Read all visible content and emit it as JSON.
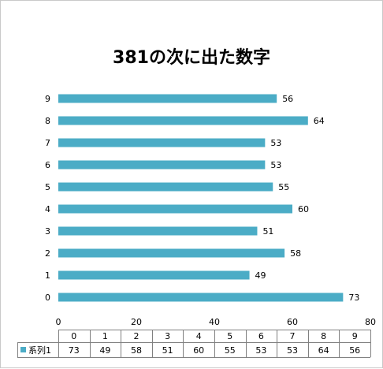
{
  "chart_data": {
    "type": "bar",
    "orientation": "horizontal",
    "title": "381の次に出た数字",
    "categories": [
      "0",
      "1",
      "2",
      "3",
      "4",
      "5",
      "6",
      "7",
      "8",
      "9"
    ],
    "series": [
      {
        "name": "系列1",
        "values": [
          73,
          49,
          58,
          51,
          60,
          55,
          53,
          53,
          64,
          56
        ],
        "color": "#4bacc6"
      }
    ],
    "xlim": [
      0,
      80
    ],
    "x_ticks": [
      0,
      20,
      40,
      60,
      80
    ],
    "grid": false,
    "data_labels": true,
    "data_table": true,
    "legend": "in-data-table"
  }
}
